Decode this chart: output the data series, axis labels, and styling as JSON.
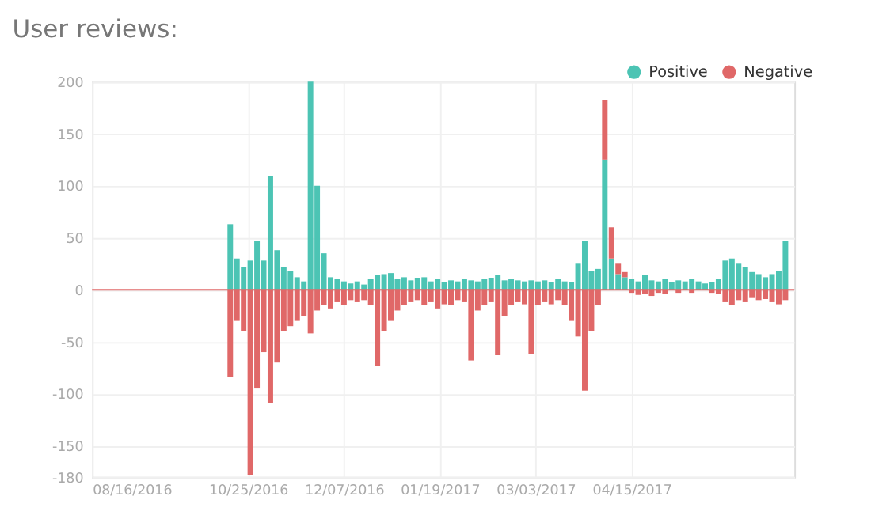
{
  "chart_data": {
    "type": "bar",
    "title": "User reviews:",
    "stacked": true,
    "x": [
      "2016-10-17",
      "2016-10-20",
      "2016-10-23",
      "2016-10-26",
      "2016-10-29",
      "2016-11-01",
      "2016-11-04",
      "2016-11-07",
      "2016-11-10",
      "2016-11-13",
      "2016-11-16",
      "2016-11-19",
      "2016-11-22",
      "2016-11-25",
      "2016-11-28",
      "2016-12-01",
      "2016-12-04",
      "2016-12-07",
      "2016-12-10",
      "2016-12-13",
      "2016-12-16",
      "2016-12-19",
      "2016-12-22",
      "2016-12-25",
      "2016-12-28",
      "2016-12-31",
      "2017-01-03",
      "2017-01-06",
      "2017-01-09",
      "2017-01-12",
      "2017-01-15",
      "2017-01-18",
      "2017-01-21",
      "2017-01-24",
      "2017-01-27",
      "2017-01-30",
      "2017-02-02",
      "2017-02-05",
      "2017-02-08",
      "2017-02-11",
      "2017-02-14",
      "2017-02-17",
      "2017-02-20",
      "2017-02-23",
      "2017-02-26",
      "2017-03-01",
      "2017-03-04",
      "2017-03-07",
      "2017-03-10",
      "2017-03-13",
      "2017-03-16",
      "2017-03-19",
      "2017-03-22",
      "2017-03-25",
      "2017-03-28",
      "2017-03-31",
      "2017-04-03",
      "2017-04-06",
      "2017-04-09",
      "2017-04-12",
      "2017-04-15",
      "2017-04-18",
      "2017-04-21",
      "2017-04-24",
      "2017-04-27",
      "2017-04-30",
      "2017-05-03",
      "2017-05-06",
      "2017-05-09",
      "2017-05-12",
      "2017-05-15",
      "2017-05-18",
      "2017-05-21",
      "2017-05-24",
      "2017-05-27",
      "2017-05-30",
      "2017-06-02",
      "2017-06-05",
      "2017-06-08",
      "2017-06-11",
      "2017-06-14",
      "2017-06-17",
      "2017-06-20",
      "2017-06-23"
    ],
    "series": [
      {
        "name": "Positive",
        "color": "#4cc4b4",
        "values": [
          63,
          30,
          22,
          28,
          47,
          28,
          109,
          38,
          22,
          18,
          12,
          8,
          200,
          100,
          35,
          12,
          10,
          8,
          6,
          8,
          5,
          10,
          14,
          15,
          16,
          10,
          12,
          9,
          11,
          12,
          8,
          10,
          7,
          9,
          8,
          10,
          9,
          8,
          10,
          11,
          14,
          9,
          10,
          9,
          8,
          9,
          8,
          9,
          7,
          10,
          8,
          7,
          25,
          47,
          18,
          20,
          125,
          30,
          15,
          12,
          10,
          8,
          14,
          9,
          8,
          10,
          7,
          9,
          8,
          10,
          8,
          6,
          7,
          10,
          28,
          30,
          25,
          22,
          17,
          15,
          12,
          15,
          18,
          47
        ]
      },
      {
        "name": "Negative",
        "color": "#e06868",
        "values": [
          -84,
          -30,
          -40,
          -178,
          -95,
          -60,
          -109,
          -70,
          -40,
          -35,
          -30,
          -25,
          -42,
          -20,
          -15,
          -18,
          -12,
          -15,
          -10,
          -12,
          -10,
          -15,
          -73,
          -40,
          -30,
          -20,
          -15,
          -12,
          -10,
          -15,
          -12,
          -18,
          -14,
          -15,
          -10,
          -12,
          -68,
          -20,
          -15,
          -12,
          -63,
          -25,
          -15,
          -12,
          -14,
          -62,
          -15,
          -12,
          -14,
          -10,
          -15,
          -30,
          -45,
          -97,
          -40,
          -15,
          57,
          30,
          10,
          5,
          -3,
          -5,
          -4,
          -6,
          -3,
          -4,
          null,
          -3,
          null,
          -3,
          null,
          null,
          -3,
          -4,
          -12,
          -15,
          -10,
          -12,
          -8,
          -10,
          -9,
          -12,
          -14,
          -10
        ]
      }
    ],
    "xlim": [
      "2016-08-16",
      "2017-06-27"
    ],
    "xticks": [
      {
        "value": "2016-08-16",
        "label": "08/16/2016"
      },
      {
        "value": "2016-10-25",
        "label": "10/25/2016"
      },
      {
        "value": "2016-12-07",
        "label": "12/07/2016"
      },
      {
        "value": "2017-01-19",
        "label": "01/19/2017"
      },
      {
        "value": "2017-03-03",
        "label": "03/03/2017"
      },
      {
        "value": "2017-04-15",
        "label": "04/15/2017"
      }
    ],
    "ylim": [
      -180,
      200
    ],
    "yticks": [
      200,
      150,
      100,
      50,
      0,
      -50,
      -100,
      -150,
      -180
    ],
    "ref_lines": [
      {
        "axis": "y",
        "value": 0,
        "color": "#e06868"
      }
    ],
    "grid": true,
    "legend": "top right"
  }
}
